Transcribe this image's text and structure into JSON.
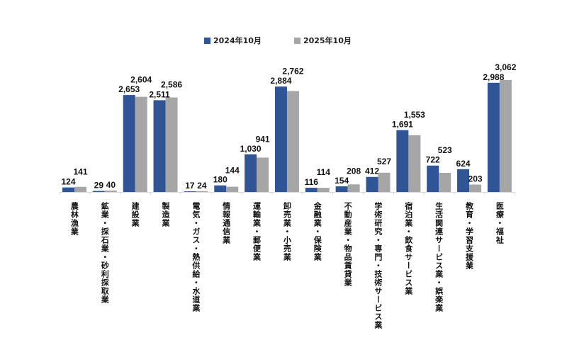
{
  "chart_data": {
    "type": "bar",
    "title": "",
    "xlabel": "",
    "ylabel": "",
    "ylim": [
      0,
      3200
    ],
    "grid": false,
    "legend_position": "top-center",
    "categories": [
      "農林漁業",
      "鉱業・採石業・砂利採取業",
      "建設業",
      "製造業",
      "電気・ガス・熱供給・水道業",
      "情報通信業",
      "運輸業・郵便業",
      "卸売業・小売業",
      "金融業・保険業",
      "不動産業・物品賃貸業",
      "学術研究・専門・技術サービス業",
      "宿泊業・飲食サービス業",
      "生活関連サービス業・娯楽業",
      "教育・学習支援業",
      "医療・福祉"
    ],
    "series": [
      {
        "name": "2024年10月",
        "color": "#2F5597",
        "values": [
          124,
          29,
          2653,
          2511,
          17,
          180,
          1030,
          2884,
          116,
          154,
          412,
          1691,
          722,
          624,
          2988
        ]
      },
      {
        "name": "2025年10月",
        "color": "#A6A6A6",
        "values": [
          141,
          40,
          2604,
          2586,
          24,
          144,
          941,
          2762,
          114,
          208,
          527,
          1553,
          523,
          203,
          3062
        ]
      }
    ]
  }
}
